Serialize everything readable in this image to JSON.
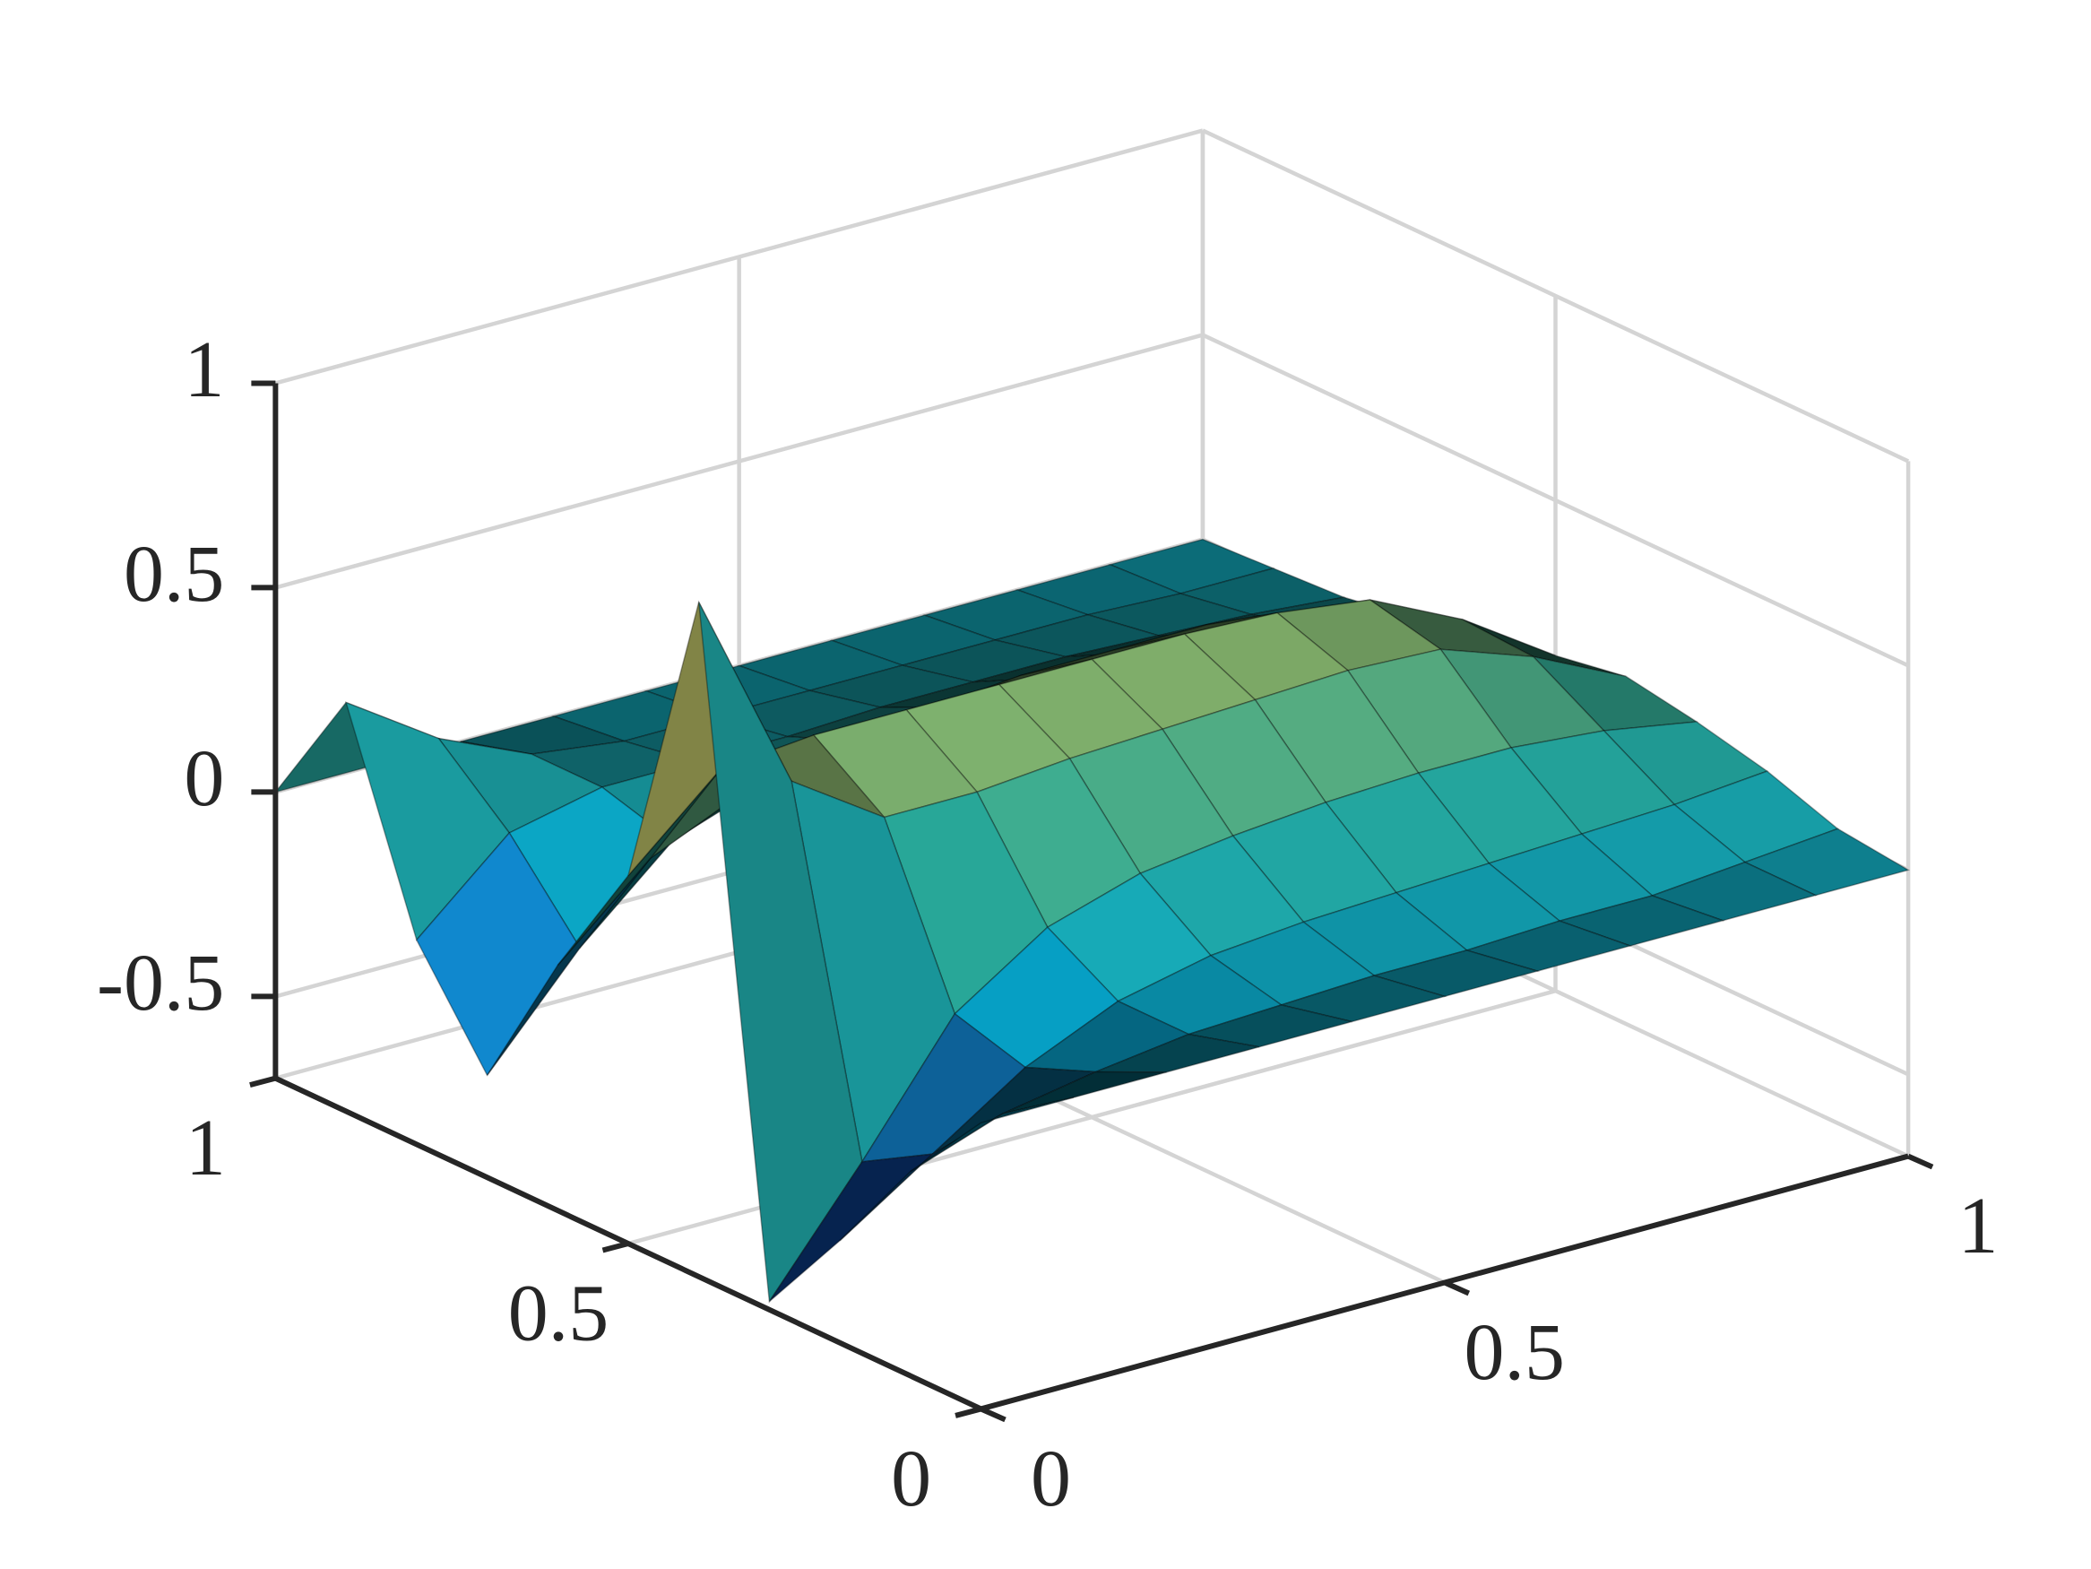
{
  "chart_data": {
    "type": "surface",
    "x": [
      0,
      0.1,
      0.2,
      0.3,
      0.4,
      0.5,
      0.6,
      0.7,
      0.8,
      0.9,
      1
    ],
    "y": [
      0,
      0.1,
      0.2,
      0.3,
      0.4,
      0.5,
      0.6,
      0.7,
      0.8,
      0.9,
      1
    ],
    "z": [
      [
        0,
        -0.2,
        -0.45,
        -0.68,
        0.95,
        0.2,
        -0.1,
        -0.45,
        -0.2,
        0.3,
        0
      ],
      [
        0,
        -0.12,
        -0.3,
        -0.4,
        0.45,
        0.4,
        0.1,
        -0.2,
        0,
        0.15,
        0
      ],
      [
        0,
        -0.08,
        -0.15,
        -0.1,
        0.3,
        0.42,
        0.2,
        0,
        0.05,
        0.05,
        0
      ],
      [
        0,
        -0.05,
        -0.05,
        0.05,
        0.3,
        0.42,
        0.25,
        0.08,
        0.05,
        0.02,
        0
      ],
      [
        0,
        -0.04,
        0,
        0.12,
        0.32,
        0.42,
        0.28,
        0.12,
        0.05,
        0.02,
        0
      ],
      [
        0,
        -0.03,
        0.02,
        0.15,
        0.33,
        0.42,
        0.3,
        0.14,
        0.06,
        0.02,
        0
      ],
      [
        0,
        -0.03,
        0.03,
        0.17,
        0.34,
        0.42,
        0.3,
        0.15,
        0.06,
        0.02,
        0
      ],
      [
        0,
        -0.02,
        0.04,
        0.18,
        0.35,
        0.41,
        0.3,
        0.15,
        0.06,
        0.02,
        0
      ],
      [
        0,
        -0.02,
        0.05,
        0.18,
        0.34,
        0.38,
        0.27,
        0.13,
        0.05,
        0.02,
        0
      ],
      [
        0,
        0,
        0.06,
        0.16,
        0.26,
        0.27,
        0.19,
        0.09,
        0.04,
        0.01,
        0
      ],
      [
        0,
        0.02,
        0.08,
        0.12,
        0.15,
        0.12,
        0.08,
        0.05,
        0.02,
        0.01,
        0
      ]
    ],
    "xlim": [
      0,
      1
    ],
    "xticks": [
      0,
      0.5,
      1
    ],
    "ylim": [
      0,
      1
    ],
    "yticks": [
      0,
      0.5,
      1
    ],
    "zlim": [
      -0.7,
      1
    ],
    "zticks": [
      -0.5,
      0,
      0.5,
      1
    ],
    "grid": true,
    "colormap": [
      "#352a87",
      "#0f5cdd",
      "#1481d6",
      "#06a4ca",
      "#2eb7a4",
      "#87bf77",
      "#d1bb59",
      "#fec832",
      "#f9fb0e"
    ]
  }
}
